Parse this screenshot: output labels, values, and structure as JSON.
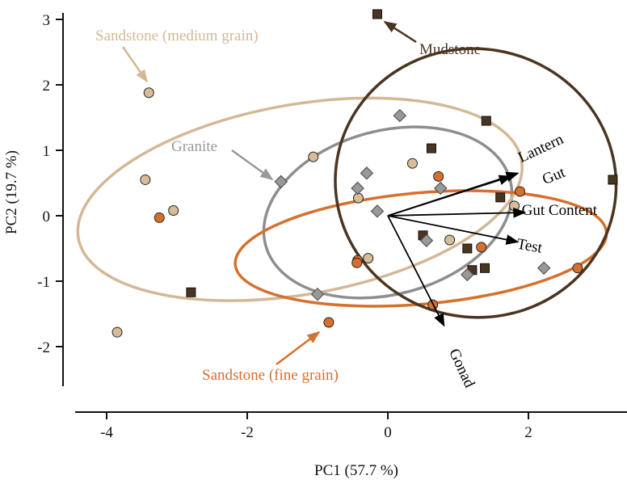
{
  "chart_data": {
    "type": "scatter",
    "title": "",
    "xlabel": "PC1 (57.7 %)",
    "ylabel": "PC2 (19.7 %)",
    "xlim": [
      -4.4,
      3.25
    ],
    "ylim": [
      -2.55,
      3.15
    ],
    "xticks": [
      -4,
      -2,
      0,
      2
    ],
    "yticks": [
      3,
      2,
      1,
      0,
      -1,
      -2
    ],
    "grid": false,
    "colors": {
      "mudstone": "#4a3521",
      "sandstone_medium": "#d8bc98",
      "sandstone_medium_line": "#d4b896",
      "sandstone_fine": "#d5702e",
      "granite": "#999999",
      "granite_line": "#8e8e8e",
      "arrow": "#000000"
    },
    "series": [
      {
        "name": "Mudstone",
        "marker": "square",
        "color": "#4a3521",
        "points": [
          [
            -0.15,
            3.08
          ],
          [
            1.4,
            1.45
          ],
          [
            0.62,
            1.03
          ],
          [
            3.2,
            0.55
          ],
          [
            1.6,
            0.28
          ],
          [
            0.5,
            -0.3
          ],
          [
            1.13,
            -0.5
          ],
          [
            1.38,
            -0.8
          ],
          [
            1.2,
            -0.83
          ],
          [
            -2.8,
            -1.17
          ]
        ]
      },
      {
        "name": "Sandstone (medium grain)",
        "marker": "circle",
        "color": "#d8bc98",
        "points": [
          [
            -3.4,
            1.88
          ],
          [
            -1.06,
            0.9
          ],
          [
            0.35,
            0.8
          ],
          [
            -3.45,
            0.55
          ],
          [
            -0.42,
            0.27
          ],
          [
            -3.05,
            0.08
          ],
          [
            1.8,
            0.15
          ],
          [
            0.88,
            -0.37
          ],
          [
            -0.28,
            -0.65
          ],
          [
            -3.85,
            -1.78
          ]
        ]
      },
      {
        "name": "Sandstone (fine grain)",
        "marker": "circle",
        "color": "#d5702e",
        "points": [
          [
            0.72,
            0.6
          ],
          [
            -3.25,
            -0.03
          ],
          [
            1.88,
            0.37
          ],
          [
            1.33,
            -0.48
          ],
          [
            -0.43,
            -0.68
          ],
          [
            -0.44,
            -0.72
          ],
          [
            2.7,
            -0.8
          ],
          [
            0.64,
            -1.36
          ],
          [
            -0.84,
            -1.63
          ]
        ]
      },
      {
        "name": "Granite",
        "marker": "diamond",
        "color": "#999999",
        "points": [
          [
            0.17,
            1.53
          ],
          [
            -1.52,
            0.52
          ],
          [
            -0.3,
            0.65
          ],
          [
            -0.43,
            0.42
          ],
          [
            0.75,
            0.42
          ],
          [
            -0.15,
            0.07
          ],
          [
            0.55,
            -0.38
          ],
          [
            1.13,
            -0.9
          ],
          [
            2.22,
            -0.8
          ],
          [
            -1.0,
            -1.2
          ]
        ]
      }
    ],
    "ellipses": [
      {
        "group": "Granite",
        "cx": 0.0,
        "cy": 0.05,
        "rx": 1.8,
        "ry": 1.25,
        "rotation_deg": -15
      },
      {
        "group": "Sandstone (medium grain)",
        "cx": -1.25,
        "cy": 0.25,
        "rx": 3.2,
        "ry": 1.45,
        "rotation_deg": -10
      },
      {
        "group": "Sandstone (fine grain)",
        "cx": 0.47,
        "cy": -0.5,
        "rx": 2.65,
        "ry": 0.85,
        "rotation_deg": -5
      },
      {
        "group": "Mudstone",
        "cx": 1.25,
        "cy": 0.5,
        "rx": 2.0,
        "ry": 2.05,
        "rotation_deg": 10
      }
    ],
    "vectors": [
      {
        "label": "Lantern",
        "x": 1.85,
        "y": 0.65
      },
      {
        "label": "Gut",
        "x": 1.75,
        "y": 0.6
      },
      {
        "label": "Gut Content",
        "x": 1.95,
        "y": 0.05
      },
      {
        "label": "Test",
        "x": 1.85,
        "y": -0.4
      },
      {
        "label": "Gonad",
        "x": 0.8,
        "y": -1.68
      }
    ],
    "annotations": [
      {
        "text": "Sandstone (medium grain)",
        "color": "#d4b896"
      },
      {
        "text": "Granite",
        "color": "#999999"
      },
      {
        "text": "Mudstone",
        "color": "#4a3521"
      },
      {
        "text": "Sandstone (fine grain)",
        "color": "#d5702e"
      }
    ]
  }
}
